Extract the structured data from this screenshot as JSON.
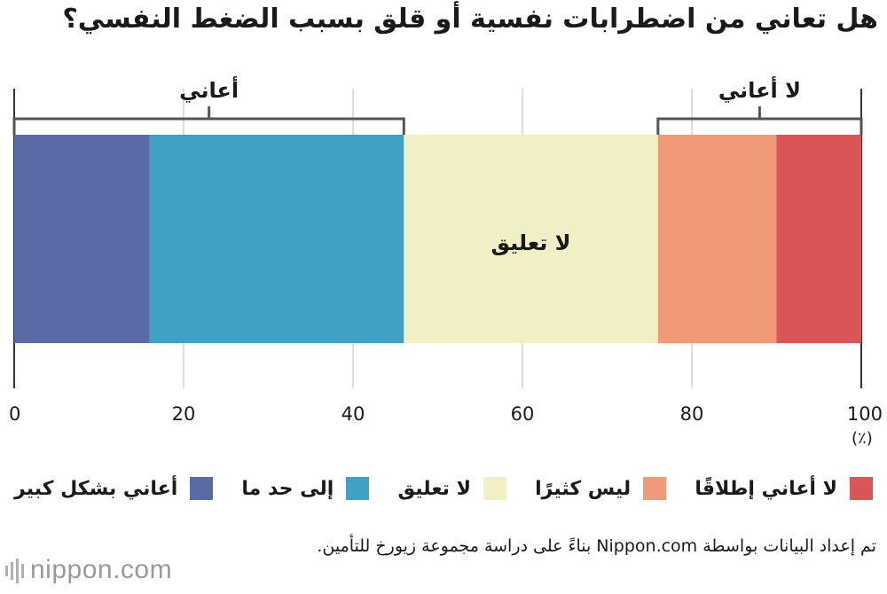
{
  "title": "هل تعاني من اضطرابات نفسية أو قلق بسبب الضغط النفسي؟",
  "unit": "(٪)",
  "source": "تم إعداد البيانات بواسطة Nippon.com بناءً على دراسة مجموعة زيورخ للتأمين.",
  "logo": "nippon.com",
  "chart_data": {
    "type": "bar",
    "orientation": "horizontal-stacked",
    "xlim": [
      0,
      100
    ],
    "xticks": [
      "0",
      "20",
      "40",
      "60",
      "80",
      "100"
    ],
    "grid": true,
    "legend_placement": "bottom",
    "series": [
      {
        "name": "أعاني بشكل كبير",
        "value": 16,
        "color": "#5a6aa6"
      },
      {
        "name": "إلى حد ما",
        "value": 30,
        "color": "#40a1c4"
      },
      {
        "name": "لا تعليق",
        "value": 30,
        "color": "#f1efc4"
      },
      {
        "name": "ليس كثيرًا",
        "value": 14,
        "color": "#f09a78"
      },
      {
        "name": "لا أعاني إطلاقًا",
        "value": 10,
        "color": "#d95556"
      }
    ],
    "annotations": {
      "suffer_group": "أعاني",
      "not_suffer_group": "لا أعاني",
      "center_label": "لا تعليق"
    }
  }
}
